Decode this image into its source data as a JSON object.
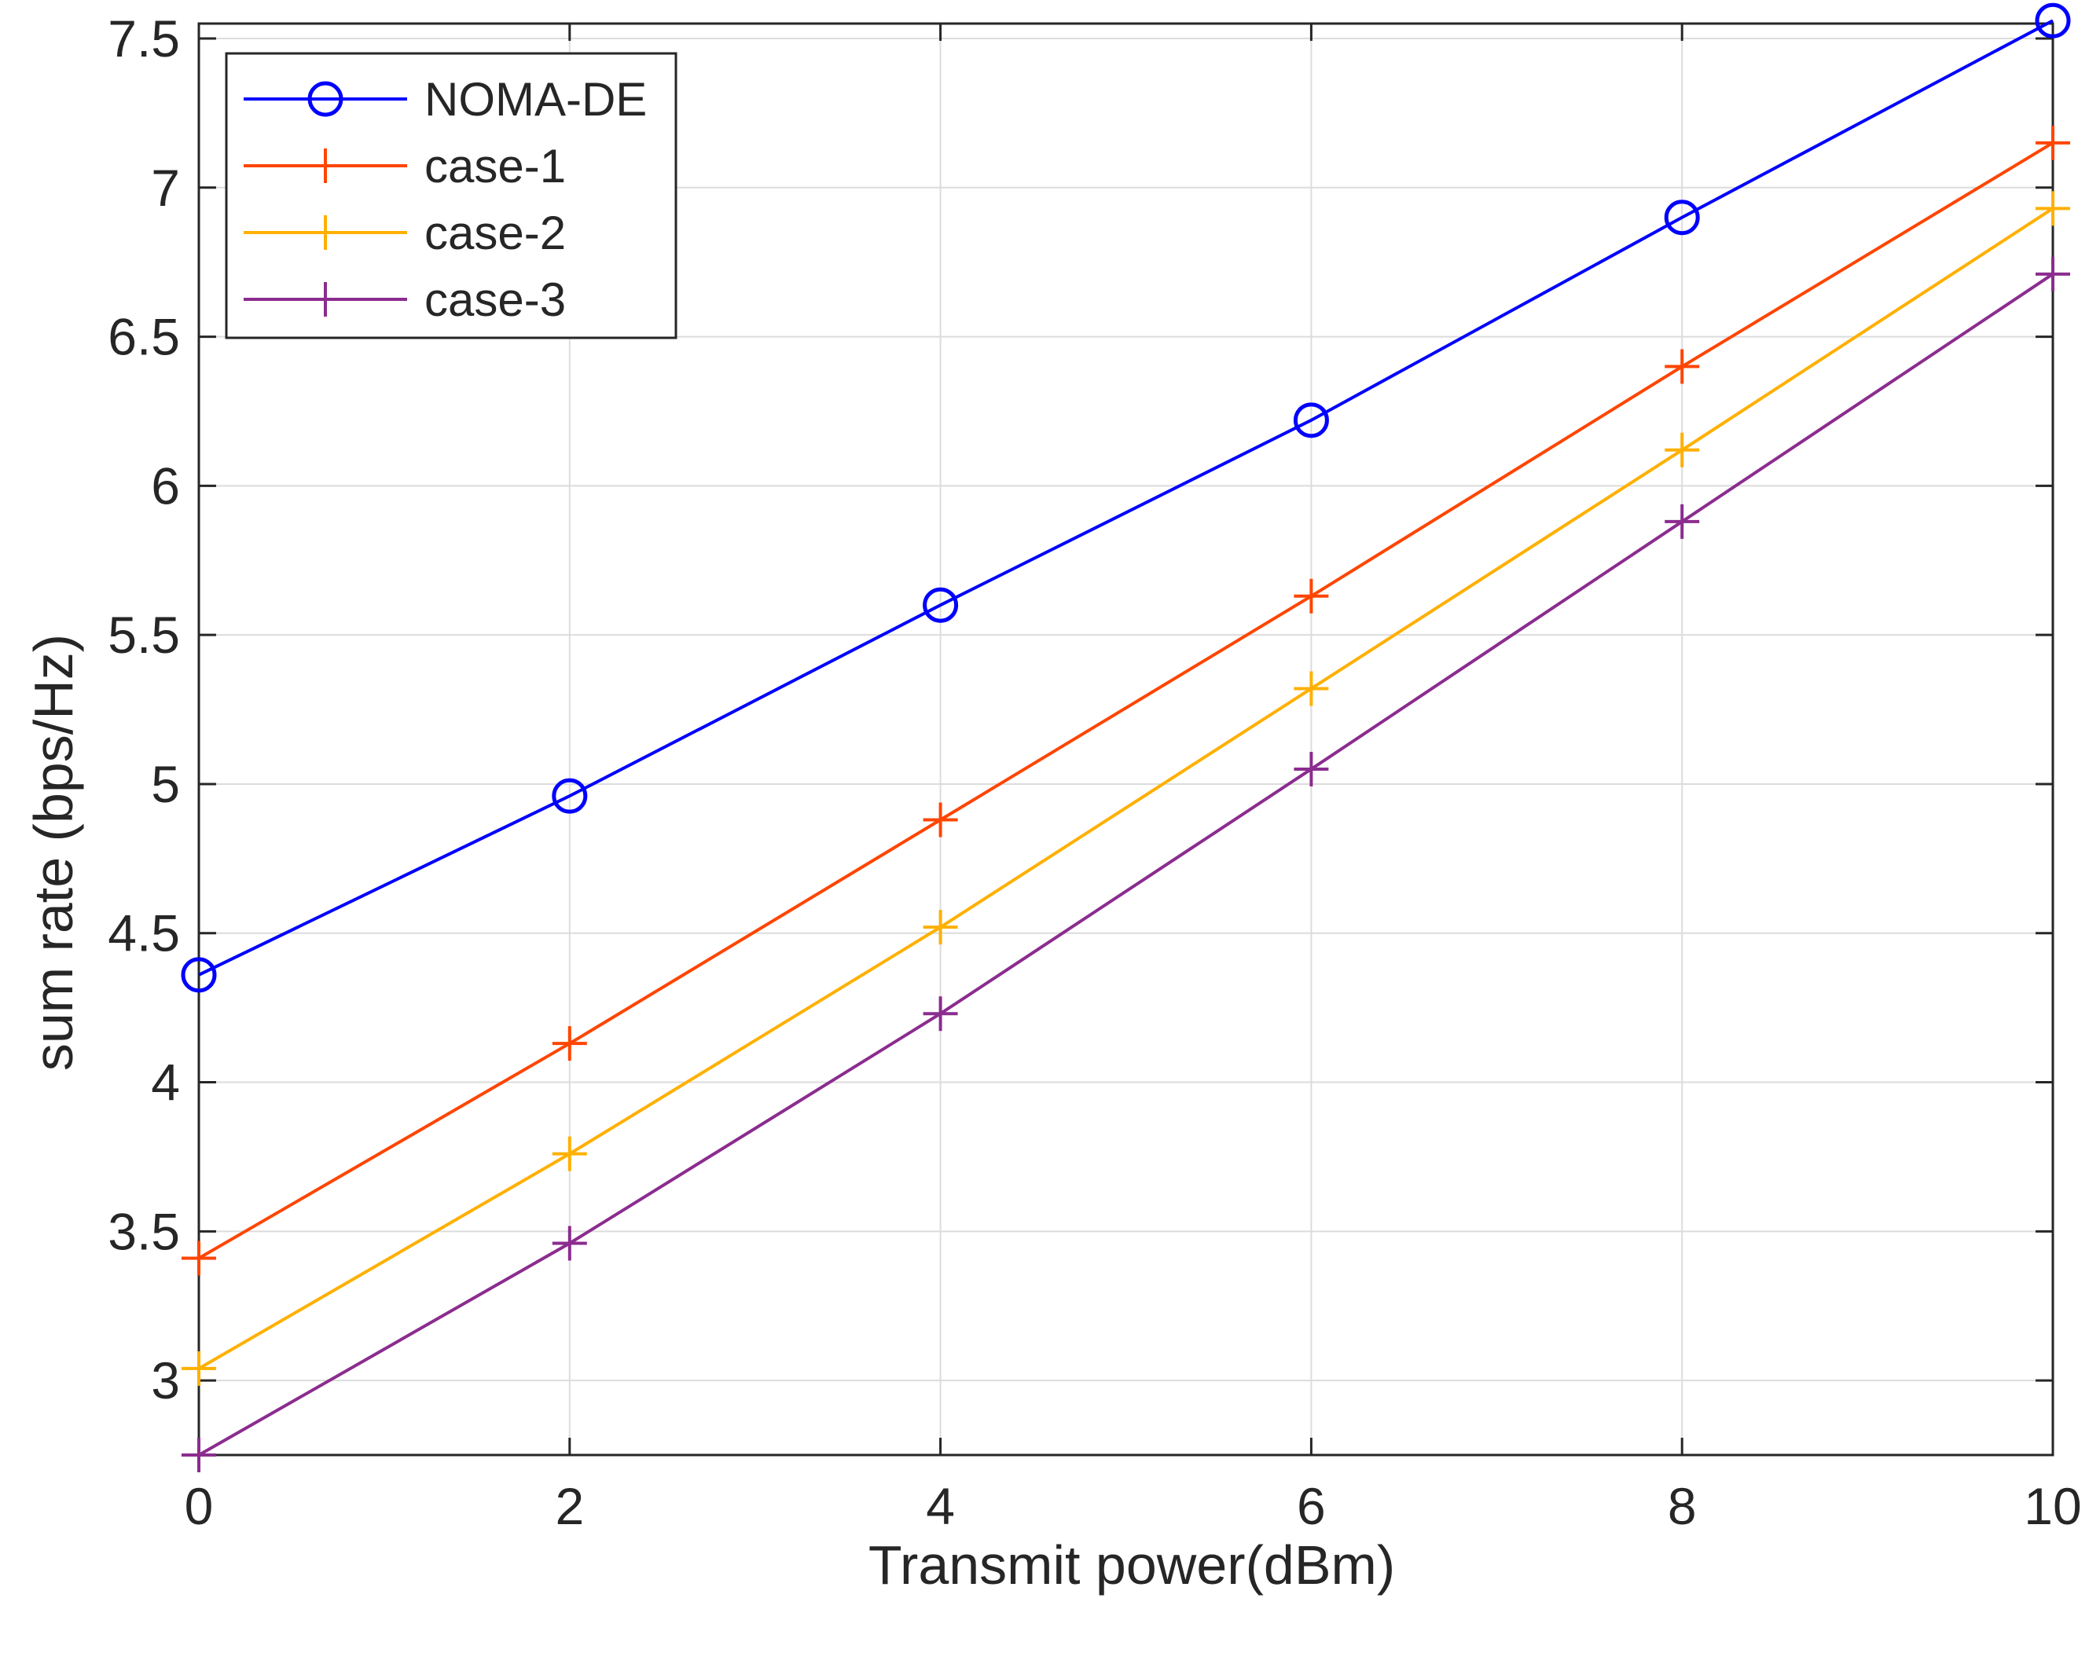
{
  "chart_data": {
    "type": "line",
    "title": "",
    "xlabel": "Transmit power(dBm)",
    "ylabel": "sum rate (bps/Hz)",
    "x": [
      0,
      2,
      4,
      6,
      8,
      10
    ],
    "xlim": [
      0,
      10
    ],
    "ylim": [
      2.75,
      7.55
    ],
    "xticks": [
      0,
      2,
      4,
      6,
      8,
      10
    ],
    "yticks": [
      3,
      3.5,
      4,
      4.5,
      5,
      5.5,
      6,
      6.5,
      7,
      7.5
    ],
    "grid": true,
    "legend_position": "top-left",
    "series": [
      {
        "name": "NOMA-DE",
        "color": "#0000ff",
        "marker": "circle",
        "values": [
          4.36,
          4.96,
          5.6,
          6.22,
          6.9,
          7.56
        ]
      },
      {
        "name": "case-1",
        "color": "#ff4500",
        "marker": "plus",
        "values": [
          3.41,
          4.13,
          4.88,
          5.63,
          6.4,
          7.15
        ]
      },
      {
        "name": "case-2",
        "color": "#ffb000",
        "marker": "plus",
        "values": [
          3.04,
          3.76,
          4.52,
          5.32,
          6.12,
          6.93
        ]
      },
      {
        "name": "case-3",
        "color": "#8b2c8f",
        "marker": "plus",
        "values": [
          2.75,
          3.46,
          4.23,
          5.05,
          5.88,
          6.71
        ]
      }
    ]
  }
}
